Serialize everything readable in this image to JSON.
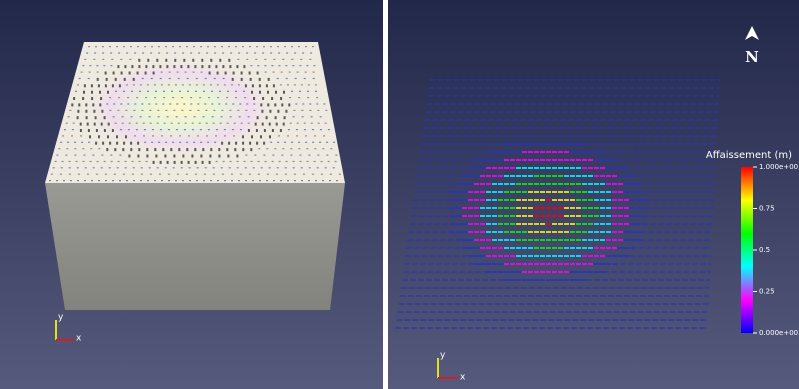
{
  "left_view": {
    "triad": {
      "y": "y",
      "x": "x"
    }
  },
  "right_view": {
    "north": "N",
    "colorbar": {
      "title": "Affaissement (m)",
      "ticks": [
        "1.000e+00",
        "0.75",
        "0.5",
        "0.25",
        "0.000e+00"
      ]
    },
    "triad": {
      "y": "y",
      "x": "x"
    }
  }
}
